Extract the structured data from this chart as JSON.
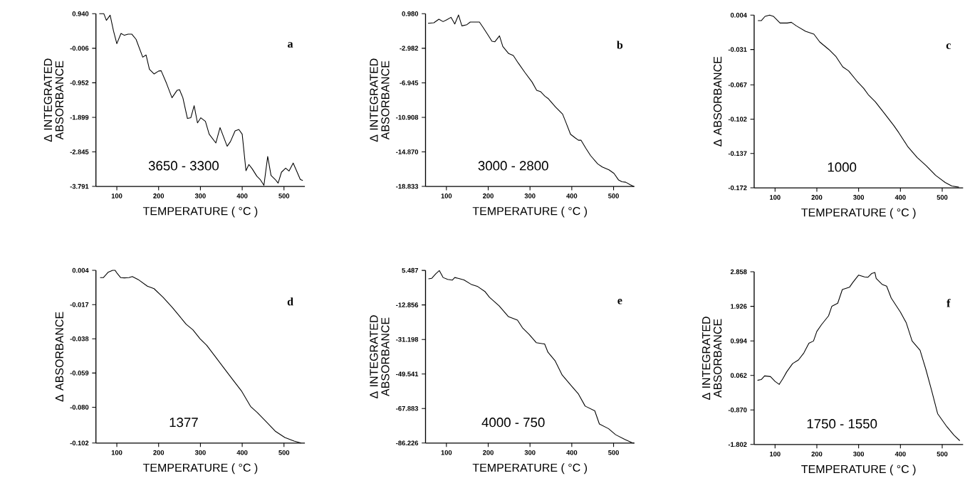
{
  "chart_data": [
    {
      "type": "line",
      "xlabel": "TEMPERATURE ( °C )",
      "ylabel": "Δ INTEGRATED ABSORBANCE",
      "annotations": [
        "a",
        "3650 - 3300"
      ],
      "color": "#000000",
      "xlim": [
        50,
        550
      ],
      "ylim": [
        -3.791,
        0.94
      ],
      "xticks": [
        100,
        200,
        300,
        400,
        500
      ],
      "yticks": [
        {
          "value": 0.94,
          "label": "0.940"
        },
        {
          "value": -0.006,
          "label": "-0.006"
        },
        {
          "value": -0.952,
          "label": "-0.952"
        },
        {
          "value": -1.899,
          "label": "-1.899"
        },
        {
          "value": -2.845,
          "label": "-2.845"
        },
        {
          "value": -3.791,
          "label": "-3.791"
        }
      ],
      "x": [
        58,
        69,
        75,
        84,
        92,
        100,
        110,
        118,
        127,
        136,
        146,
        162,
        170,
        178,
        189,
        200,
        206,
        219,
        232,
        244,
        250,
        258,
        269,
        277,
        285,
        293,
        301,
        312,
        321,
        337,
        347,
        364,
        372,
        383,
        392,
        400,
        409,
        416,
        424,
        435,
        443,
        452,
        461,
        469,
        479,
        486,
        494,
        504,
        512,
        522,
        530,
        539,
        545
      ],
      "values": [
        0.94,
        0.94,
        0.76,
        0.9,
        0.47,
        0.12,
        0.4,
        0.35,
        0.38,
        0.38,
        0.24,
        -0.25,
        -0.19,
        -0.58,
        -0.71,
        -0.63,
        -0.62,
        -0.97,
        -1.36,
        -1.16,
        -1.14,
        -1.36,
        -1.93,
        -1.91,
        -1.58,
        -2.05,
        -1.91,
        -2.01,
        -2.36,
        -2.6,
        -2.18,
        -2.69,
        -2.56,
        -2.27,
        -2.23,
        -2.36,
        -3.36,
        -3.19,
        -3.31,
        -3.51,
        -3.6,
        -3.76,
        -2.97,
        -3.49,
        -3.6,
        -3.7,
        -3.4,
        -3.29,
        -3.37,
        -3.15,
        -3.36,
        -3.6,
        -3.63
      ]
    },
    {
      "type": "line",
      "xlabel": "TEMPERATURE ( °C )",
      "ylabel": "Δ INTEGRATED ABSORBANCE",
      "annotations": [
        "b",
        "3000 - 2800"
      ],
      "color": "#000000",
      "xlim": [
        50,
        550
      ],
      "ylim": [
        -18.833,
        0.98
      ],
      "xticks": [
        100,
        200,
        300,
        400,
        500
      ],
      "yticks": [
        {
          "value": 0.98,
          "label": "0.980"
        },
        {
          "value": -2.982,
          "label": "-2.982"
        },
        {
          "value": -6.945,
          "label": "-6.945"
        },
        {
          "value": -10.908,
          "label": "-10.908"
        },
        {
          "value": -14.87,
          "label": "-14.870"
        },
        {
          "value": -18.833,
          "label": "-18.833"
        }
      ],
      "x": [
        56,
        70,
        82,
        92,
        101,
        111,
        120,
        129,
        137,
        149,
        157,
        165,
        179,
        188,
        199,
        209,
        216,
        227,
        235,
        249,
        260,
        272,
        288,
        305,
        316,
        325,
        336,
        344,
        361,
        378,
        386,
        397,
        408,
        416,
        422,
        434,
        445,
        462,
        473,
        489,
        501,
        512,
        520,
        529,
        540,
        548
      ],
      "values": [
        -0.11,
        -0.05,
        0.35,
        0.08,
        0.3,
        0.57,
        -0.19,
        0.84,
        -0.41,
        -0.27,
        0.03,
        0.03,
        0.03,
        -0.6,
        -1.42,
        -2.18,
        -2.23,
        -1.55,
        -2.78,
        -3.59,
        -3.81,
        -4.68,
        -5.77,
        -6.86,
        -7.81,
        -7.95,
        -8.49,
        -8.77,
        -9.72,
        -10.53,
        -11.49,
        -12.85,
        -13.26,
        -13.53,
        -13.53,
        -14.48,
        -15.3,
        -16.25,
        -16.6,
        -16.93,
        -17.34,
        -18.1,
        -18.29,
        -18.35,
        -18.65,
        -18.83
      ]
    },
    {
      "type": "line",
      "xlabel": "TEMPERATURE ( °C )",
      "ylabel": "Δ ABSORBANCE",
      "annotations": [
        "c",
        "1000"
      ],
      "color": "#000000",
      "xlim": [
        50,
        550
      ],
      "ylim": [
        -0.172,
        0.004
      ],
      "xticks": [
        100,
        200,
        300,
        400,
        500
      ],
      "yticks": [
        {
          "value": 0.004,
          "label": "0.004"
        },
        {
          "value": -0.031,
          "label": "-0.031"
        },
        {
          "value": -0.067,
          "label": "-0.067"
        },
        {
          "value": -0.102,
          "label": "-0.102"
        },
        {
          "value": -0.137,
          "label": "-0.137"
        },
        {
          "value": -0.172,
          "label": "-0.172"
        }
      ],
      "x": [
        59,
        67,
        76,
        87,
        96,
        112,
        129,
        139,
        151,
        173,
        193,
        207,
        229,
        246,
        262,
        276,
        296,
        312,
        323,
        340,
        362,
        384,
        396,
        418,
        440,
        462,
        484,
        507,
        523,
        540
      ],
      "values": [
        -0.0016,
        -0.0016,
        0.0028,
        0.004,
        0.0028,
        -0.004,
        -0.004,
        -0.0033,
        -0.0069,
        -0.0124,
        -0.0153,
        -0.0233,
        -0.0311,
        -0.0383,
        -0.0487,
        -0.0528,
        -0.0632,
        -0.0705,
        -0.077,
        -0.0843,
        -0.0963,
        -0.1084,
        -0.1157,
        -0.1302,
        -0.141,
        -0.1495,
        -0.1592,
        -0.1665,
        -0.1701,
        -0.1713
      ]
    },
    {
      "type": "line",
      "xlabel": "TEMPERATURE ( °C )",
      "ylabel": "Δ ABSORBANCE",
      "annotations": [
        "d",
        "1377"
      ],
      "color": "#000000",
      "xlim": [
        50,
        550
      ],
      "ylim": [
        -0.102,
        0.004
      ],
      "xticks": [
        100,
        200,
        300,
        400,
        500
      ],
      "yticks": [
        {
          "value": 0.004,
          "label": "0.004"
        },
        {
          "value": -0.017,
          "label": "-0.017"
        },
        {
          "value": -0.038,
          "label": "-0.038"
        },
        {
          "value": -0.059,
          "label": "-0.059"
        },
        {
          "value": -0.08,
          "label": "-0.080"
        },
        {
          "value": -0.102,
          "label": "-0.102"
        }
      ],
      "x": [
        60,
        68,
        79,
        90,
        96,
        101,
        109,
        118,
        129,
        137,
        151,
        173,
        189,
        211,
        233,
        250,
        266,
        282,
        299,
        315,
        337,
        354,
        376,
        398,
        420,
        436,
        458,
        480,
        502,
        524,
        541
      ],
      "values": [
        -0.0004,
        -0.0004,
        0.0028,
        0.004,
        0.004,
        0.0021,
        -0.0004,
        -0.0006,
        -0.0004,
        0.0002,
        -0.0016,
        -0.0057,
        -0.0072,
        -0.0126,
        -0.0188,
        -0.0241,
        -0.0291,
        -0.0325,
        -0.0379,
        -0.042,
        -0.0494,
        -0.0552,
        -0.0626,
        -0.0699,
        -0.0795,
        -0.0832,
        -0.089,
        -0.0949,
        -0.0986,
        -0.1008,
        -0.102
      ]
    },
    {
      "type": "line",
      "xlabel": "TEMPERATURE ( °C )",
      "ylabel": "Δ INTEGRATED ABSORBANCE",
      "annotations": [
        "e",
        "4000 - 750"
      ],
      "color": "#000000",
      "xlim": [
        50,
        550
      ],
      "ylim": [
        -86.226,
        5.487
      ],
      "xticks": [
        100,
        200,
        300,
        400,
        500
      ],
      "yticks": [
        {
          "value": 5.487,
          "label": "5.487"
        },
        {
          "value": -12.856,
          "label": "-12.856"
        },
        {
          "value": -31.198,
          "label": "-31.198"
        },
        {
          "value": -49.541,
          "label": "-49.541"
        },
        {
          "value": -67.883,
          "label": "-67.883"
        },
        {
          "value": -86.226,
          "label": "-86.226"
        }
      ],
      "x": [
        57,
        65,
        75,
        83,
        92,
        103,
        114,
        120,
        128,
        142,
        159,
        175,
        192,
        203,
        226,
        248,
        270,
        282,
        298,
        315,
        335,
        343,
        360,
        377,
        399,
        416,
        432,
        455,
        466,
        488,
        505,
        527,
        544,
        549
      ],
      "values": [
        1.0,
        1.3,
        3.8,
        5.4,
        1.7,
        0.7,
        0.3,
        1.7,
        1.3,
        0.4,
        -1.9,
        -3.1,
        -5.7,
        -8.8,
        -13.3,
        -19.0,
        -20.9,
        -25.0,
        -28.5,
        -32.9,
        -33.6,
        -38.0,
        -42.5,
        -50.1,
        -55.8,
        -60.2,
        -66.6,
        -69.1,
        -76.1,
        -78.6,
        -81.8,
        -84.3,
        -86.0,
        -86.2
      ]
    },
    {
      "type": "line",
      "xlabel": "TEMPERATURE ( °C )",
      "ylabel": "Δ INTEGRATED ABSORBANCE",
      "annotations": [
        "f",
        "1750 - 1550"
      ],
      "color": "#000000",
      "xlim": [
        50,
        550
      ],
      "ylim": [
        -1.802,
        2.858
      ],
      "xticks": [
        100,
        200,
        300,
        400,
        500
      ],
      "yticks": [
        {
          "value": 2.858,
          "label": "2.858"
        },
        {
          "value": 1.926,
          "label": "1.926"
        },
        {
          "value": 0.994,
          "label": "0.994"
        },
        {
          "value": 0.062,
          "label": "0.062"
        },
        {
          "value": -0.87,
          "label": "-0.870"
        },
        {
          "value": -1.802,
          "label": "-1.802"
        }
      ],
      "x": [
        58,
        67,
        75,
        89,
        100,
        110,
        119,
        128,
        142,
        156,
        169,
        181,
        192,
        200,
        211,
        228,
        236,
        250,
        261,
        278,
        286,
        300,
        314,
        322,
        331,
        339,
        342,
        356,
        367,
        378,
        400,
        414,
        428,
        447,
        461,
        475,
        489,
        511,
        528,
        542
      ],
      "values": [
        -0.07,
        -0.05,
        0.05,
        0.03,
        -0.1,
        -0.18,
        -0.02,
        0.16,
        0.38,
        0.48,
        0.67,
        0.93,
        0.99,
        1.25,
        1.43,
        1.67,
        1.93,
        2.01,
        2.38,
        2.44,
        2.57,
        2.77,
        2.72,
        2.71,
        2.81,
        2.84,
        2.68,
        2.52,
        2.47,
        2.15,
        1.77,
        1.48,
        0.99,
        0.74,
        0.22,
        -0.36,
        -0.97,
        -1.32,
        -1.55,
        -1.7
      ]
    }
  ]
}
